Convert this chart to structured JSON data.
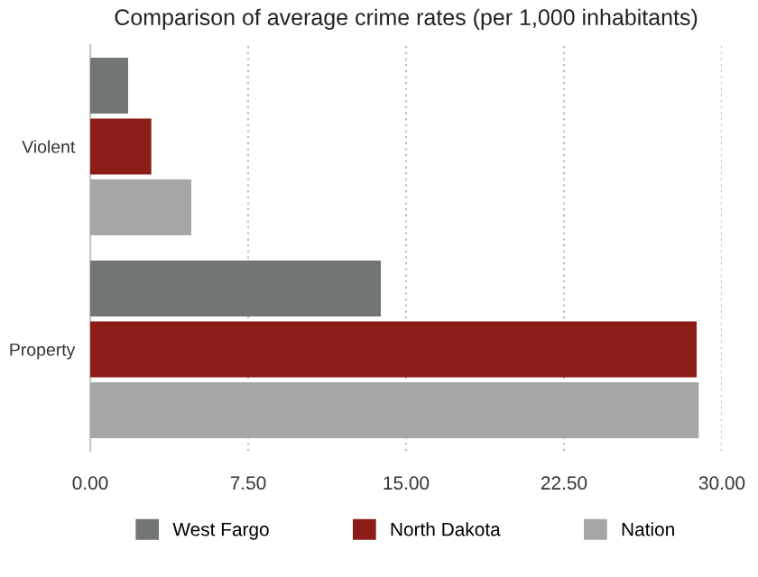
{
  "chart_data": {
    "type": "bar",
    "orientation": "horizontal",
    "title": "Comparison of average crime rates (per 1,000 inhabitants)",
    "categories": [
      "Violent",
      "Property"
    ],
    "series": [
      {
        "name": "West Fargo",
        "color": "#727673",
        "values": [
          1.8,
          13.8
        ]
      },
      {
        "name": "North Dakota",
        "color": "#8b1c17",
        "values": [
          2.9,
          28.8
        ]
      },
      {
        "name": "Nation",
        "color": "#a6a6a6",
        "values": [
          4.8,
          28.9
        ]
      }
    ],
    "xlim": [
      0,
      30
    ],
    "xticks": [
      {
        "value": 0,
        "label": "0.00"
      },
      {
        "value": 7.5,
        "label": "7.50"
      },
      {
        "value": 15,
        "label": "15.00"
      },
      {
        "value": 22.5,
        "label": "22.50"
      },
      {
        "value": 30,
        "label": "30.00"
      }
    ],
    "grid": "x",
    "legend": "bottom"
  }
}
